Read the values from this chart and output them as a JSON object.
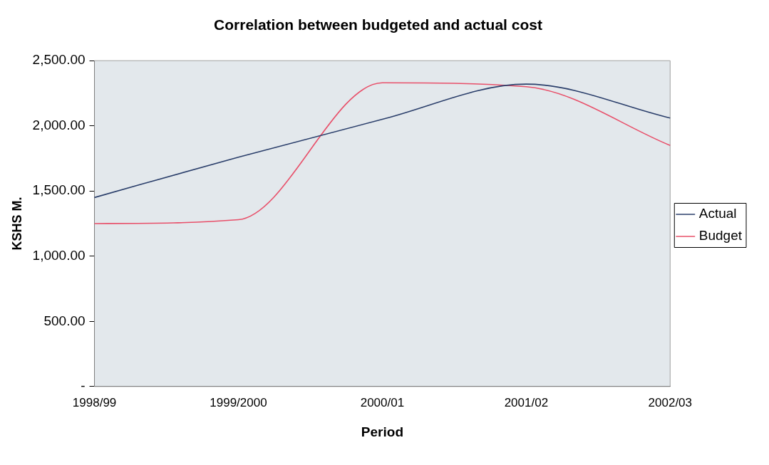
{
  "chart_data": {
    "type": "line",
    "title": "Correlation between budgeted and actual cost",
    "xlabel": "Period",
    "ylabel": "KSHS M.",
    "categories": [
      "1998/99",
      "1999/2000",
      "2000/01",
      "2001/02",
      "2002/03"
    ],
    "series": [
      {
        "name": "Actual",
        "color": "#2b3f6b",
        "values": [
          1450,
          1760,
          2050,
          2320,
          2060
        ]
      },
      {
        "name": "Budget",
        "color": "#e8506a",
        "values": [
          1250,
          1280,
          2330,
          2300,
          1850
        ]
      }
    ],
    "ylim": [
      0,
      2500
    ],
    "yticks": [
      {
        "value": 0,
        "label": "-"
      },
      {
        "value": 500,
        "label": "500.00"
      },
      {
        "value": 1000,
        "label": "1,000.00"
      },
      {
        "value": 1500,
        "label": "1,500.00"
      },
      {
        "value": 2000,
        "label": "2,000.00"
      },
      {
        "value": 2500,
        "label": "2,500.00"
      }
    ],
    "grid": false,
    "legend": "right",
    "marker": "none",
    "line_style": "solid"
  }
}
